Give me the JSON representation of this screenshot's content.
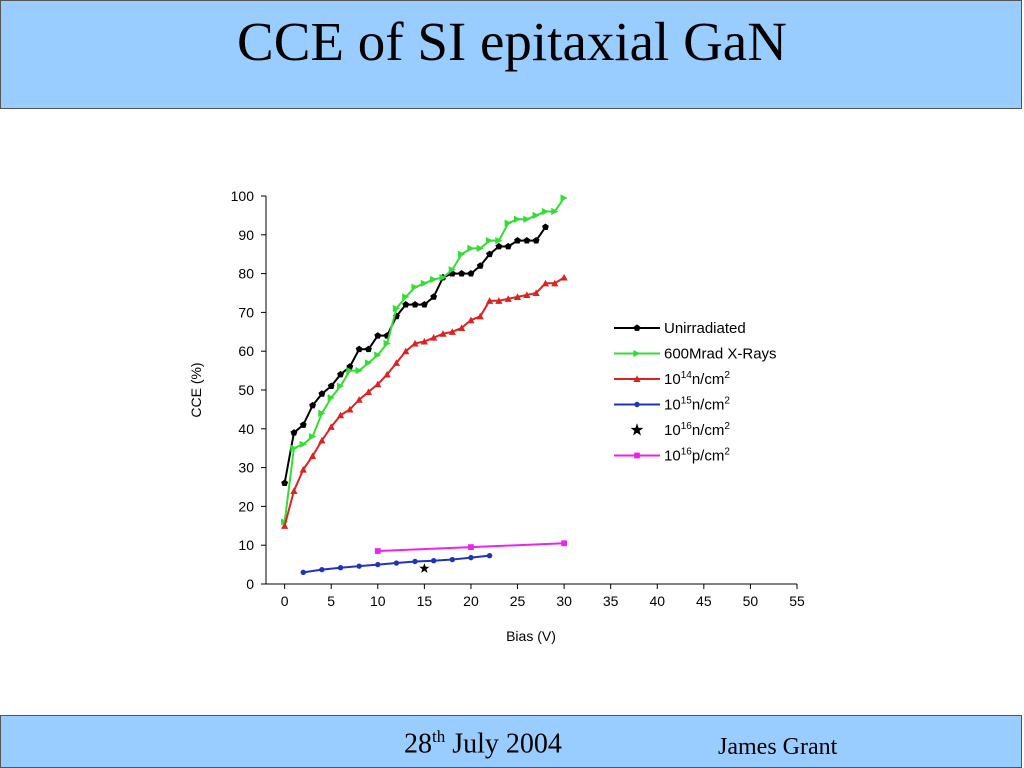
{
  "slide": {
    "title": "CCE of SI epitaxial GaN",
    "footer": {
      "date_day": "28",
      "date_suffix": "th",
      "date_rest": " July 2004",
      "author": "James Grant"
    }
  },
  "chart_data": {
    "type": "line",
    "title": "",
    "xlabel": "Bias (V)",
    "ylabel": "CCE (%)",
    "xlim": [
      -2,
      55
    ],
    "ylim": [
      0,
      100
    ],
    "xticks": [
      0,
      5,
      10,
      15,
      20,
      25,
      30,
      35,
      40,
      45,
      50,
      55
    ],
    "yticks": [
      0,
      10,
      20,
      30,
      40,
      50,
      60,
      70,
      80,
      90,
      100
    ],
    "legend_position": "right",
    "series": [
      {
        "name": "Unirradiated",
        "color": "#000000",
        "marker": "pentagon",
        "x": [
          0,
          1,
          2,
          3,
          4,
          5,
          6,
          7,
          8,
          9,
          10,
          11,
          12,
          13,
          14,
          15,
          16,
          17,
          18,
          19,
          20,
          21,
          22,
          23,
          24,
          25,
          26,
          27,
          28
        ],
        "y": [
          26,
          39,
          41,
          46,
          49,
          51,
          54,
          56,
          60.5,
          60.5,
          64,
          64,
          69,
          72,
          72,
          72,
          74,
          79,
          80,
          80,
          80,
          82,
          85,
          87,
          87,
          88.5,
          88.5,
          88.5,
          92
        ]
      },
      {
        "name": "600Mrad X-Rays",
        "color": "#33dd33",
        "marker": "triangle-right",
        "x": [
          0,
          1,
          2,
          3,
          4,
          5,
          6,
          7,
          8,
          9,
          10,
          11,
          12,
          13,
          14,
          15,
          16,
          17,
          18,
          19,
          20,
          21,
          22,
          23,
          24,
          25,
          26,
          27,
          28,
          29,
          30
        ],
        "y": [
          16,
          35,
          36,
          38,
          44,
          48,
          51,
          55,
          55,
          57,
          59,
          62,
          71,
          74,
          76.5,
          77.5,
          78.5,
          79,
          81,
          85,
          86.5,
          86.5,
          88.5,
          88.5,
          93,
          94,
          94,
          95,
          96,
          96,
          99.5
        ]
      },
      {
        "name": "10^14 n/cm^2",
        "color": "#dd2222",
        "marker": "triangle-up",
        "x": [
          0,
          1,
          2,
          3,
          4,
          5,
          6,
          7,
          8,
          9,
          10,
          11,
          12,
          13,
          14,
          15,
          16,
          17,
          18,
          19,
          20,
          21,
          22,
          23,
          24,
          25,
          26,
          27,
          28,
          29,
          30
        ],
        "y": [
          15,
          24,
          29.5,
          33,
          37,
          40.5,
          43.5,
          45,
          47.5,
          49.5,
          51.5,
          54,
          57,
          60,
          62,
          62.5,
          63.5,
          64.5,
          65,
          66,
          68,
          69,
          73,
          73,
          73.5,
          74,
          74.5,
          75,
          77.5,
          77.5,
          79
        ]
      },
      {
        "name": "10^15 n/cm^2",
        "color": "#2233bb",
        "marker": "circle",
        "x": [
          2,
          4,
          6,
          8,
          10,
          12,
          14,
          16,
          18,
          20,
          22
        ],
        "y": [
          3,
          3.7,
          4.2,
          4.6,
          5,
          5.4,
          5.8,
          6,
          6.3,
          6.8,
          7.3
        ]
      },
      {
        "name": "10^16 n/cm^2",
        "color": "#000000",
        "marker": "star",
        "x": [
          15
        ],
        "y": [
          4
        ]
      },
      {
        "name": "10^16 p/cm^2",
        "color": "#ee22ee",
        "marker": "square",
        "x": [
          10,
          20,
          30
        ],
        "y": [
          8.5,
          9.5,
          10.5
        ]
      }
    ]
  }
}
